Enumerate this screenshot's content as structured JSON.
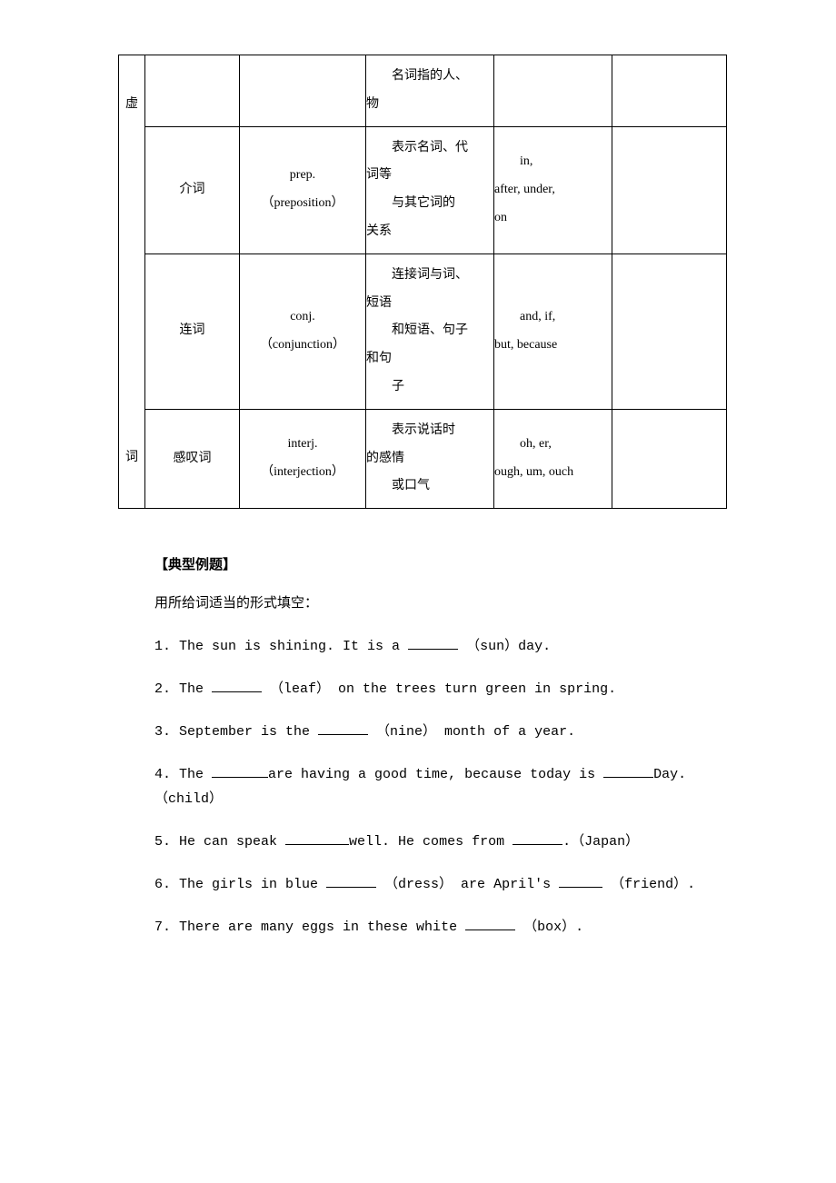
{
  "table": {
    "category_top": "虚",
    "category_bottom": "词",
    "rows": [
      {
        "name": "",
        "abbr": "",
        "desc_lines": [
          {
            "text": "名词指的人、",
            "indent": true
          },
          {
            "text": "物",
            "indent": false
          }
        ],
        "ex_lines": [],
        "last": ""
      },
      {
        "name": "介词",
        "abbr_line1": "prep.",
        "abbr_line2": "（preposition）",
        "desc_lines": [
          {
            "text": "表示名词、代",
            "indent": true
          },
          {
            "text": "词等",
            "indent": false
          },
          {
            "text": "与其它词的",
            "indent": true
          },
          {
            "text": "关系",
            "indent": false
          }
        ],
        "ex_lines": [
          {
            "text": "in,",
            "indent": true
          },
          {
            "text": "after, under,",
            "indent": false
          },
          {
            "text": "on",
            "indent": false
          }
        ],
        "last": ""
      },
      {
        "name": "连词",
        "abbr_line1": "conj.",
        "abbr_line2": "（conjunction）",
        "desc_lines": [
          {
            "text": "连接词与词、",
            "indent": true
          },
          {
            "text": "短语",
            "indent": false
          },
          {
            "text": "和短语、句子",
            "indent": true
          },
          {
            "text": "和句",
            "indent": false
          },
          {
            "text": "子",
            "indent": true
          }
        ],
        "ex_lines": [
          {
            "text": "and, if,",
            "indent": true
          },
          {
            "text": "but, because",
            "indent": false
          }
        ],
        "last": ""
      },
      {
        "name": "感叹词",
        "abbr_line1": "interj.",
        "abbr_line2": "（interjection）",
        "desc_lines": [
          {
            "text": "表示说话时",
            "indent": true
          },
          {
            "text": "的感情",
            "indent": false
          },
          {
            "text": "或口气",
            "indent": true
          }
        ],
        "ex_lines": [
          {
            "text": "oh, er,",
            "indent": true
          },
          {
            "text": "ough, um, ouch",
            "indent": false
          }
        ],
        "last": ""
      }
    ]
  },
  "section_title": "【典型例题】",
  "instruction": "用所给词适当的形式填空：",
  "exercises": [
    {
      "num": "1.",
      "parts": [
        "The sun is shining. It is a ",
        {
          "blank": 55
        },
        " （sun）day."
      ]
    },
    {
      "num": "2.",
      "parts": [
        "The ",
        {
          "blank": 55
        },
        " （leaf） on the trees turn green in spring."
      ]
    },
    {
      "num": "3.",
      "parts": [
        "September is the ",
        {
          "blank": 55
        },
        " （nine） month of a year."
      ]
    },
    {
      "num": "4.",
      "parts": [
        "The ",
        {
          "blank": 62
        },
        "are having a good time, because today is ",
        {
          "blank": 55
        },
        "Day.（child）"
      ]
    },
    {
      "num": "5.",
      "parts": [
        "He can speak ",
        {
          "blank": 70
        },
        "well. He comes from ",
        {
          "blank": 55
        },
        ".（Japan）"
      ]
    },
    {
      "num": "6.",
      "parts": [
        "The girls in blue ",
        {
          "blank": 55
        },
        " （dress） are April's ",
        {
          "blank": 48
        },
        " （friend）."
      ]
    },
    {
      "num": "7.",
      "parts": [
        "There are many eggs in these white ",
        {
          "blank": 55
        },
        " （box）."
      ]
    }
  ]
}
